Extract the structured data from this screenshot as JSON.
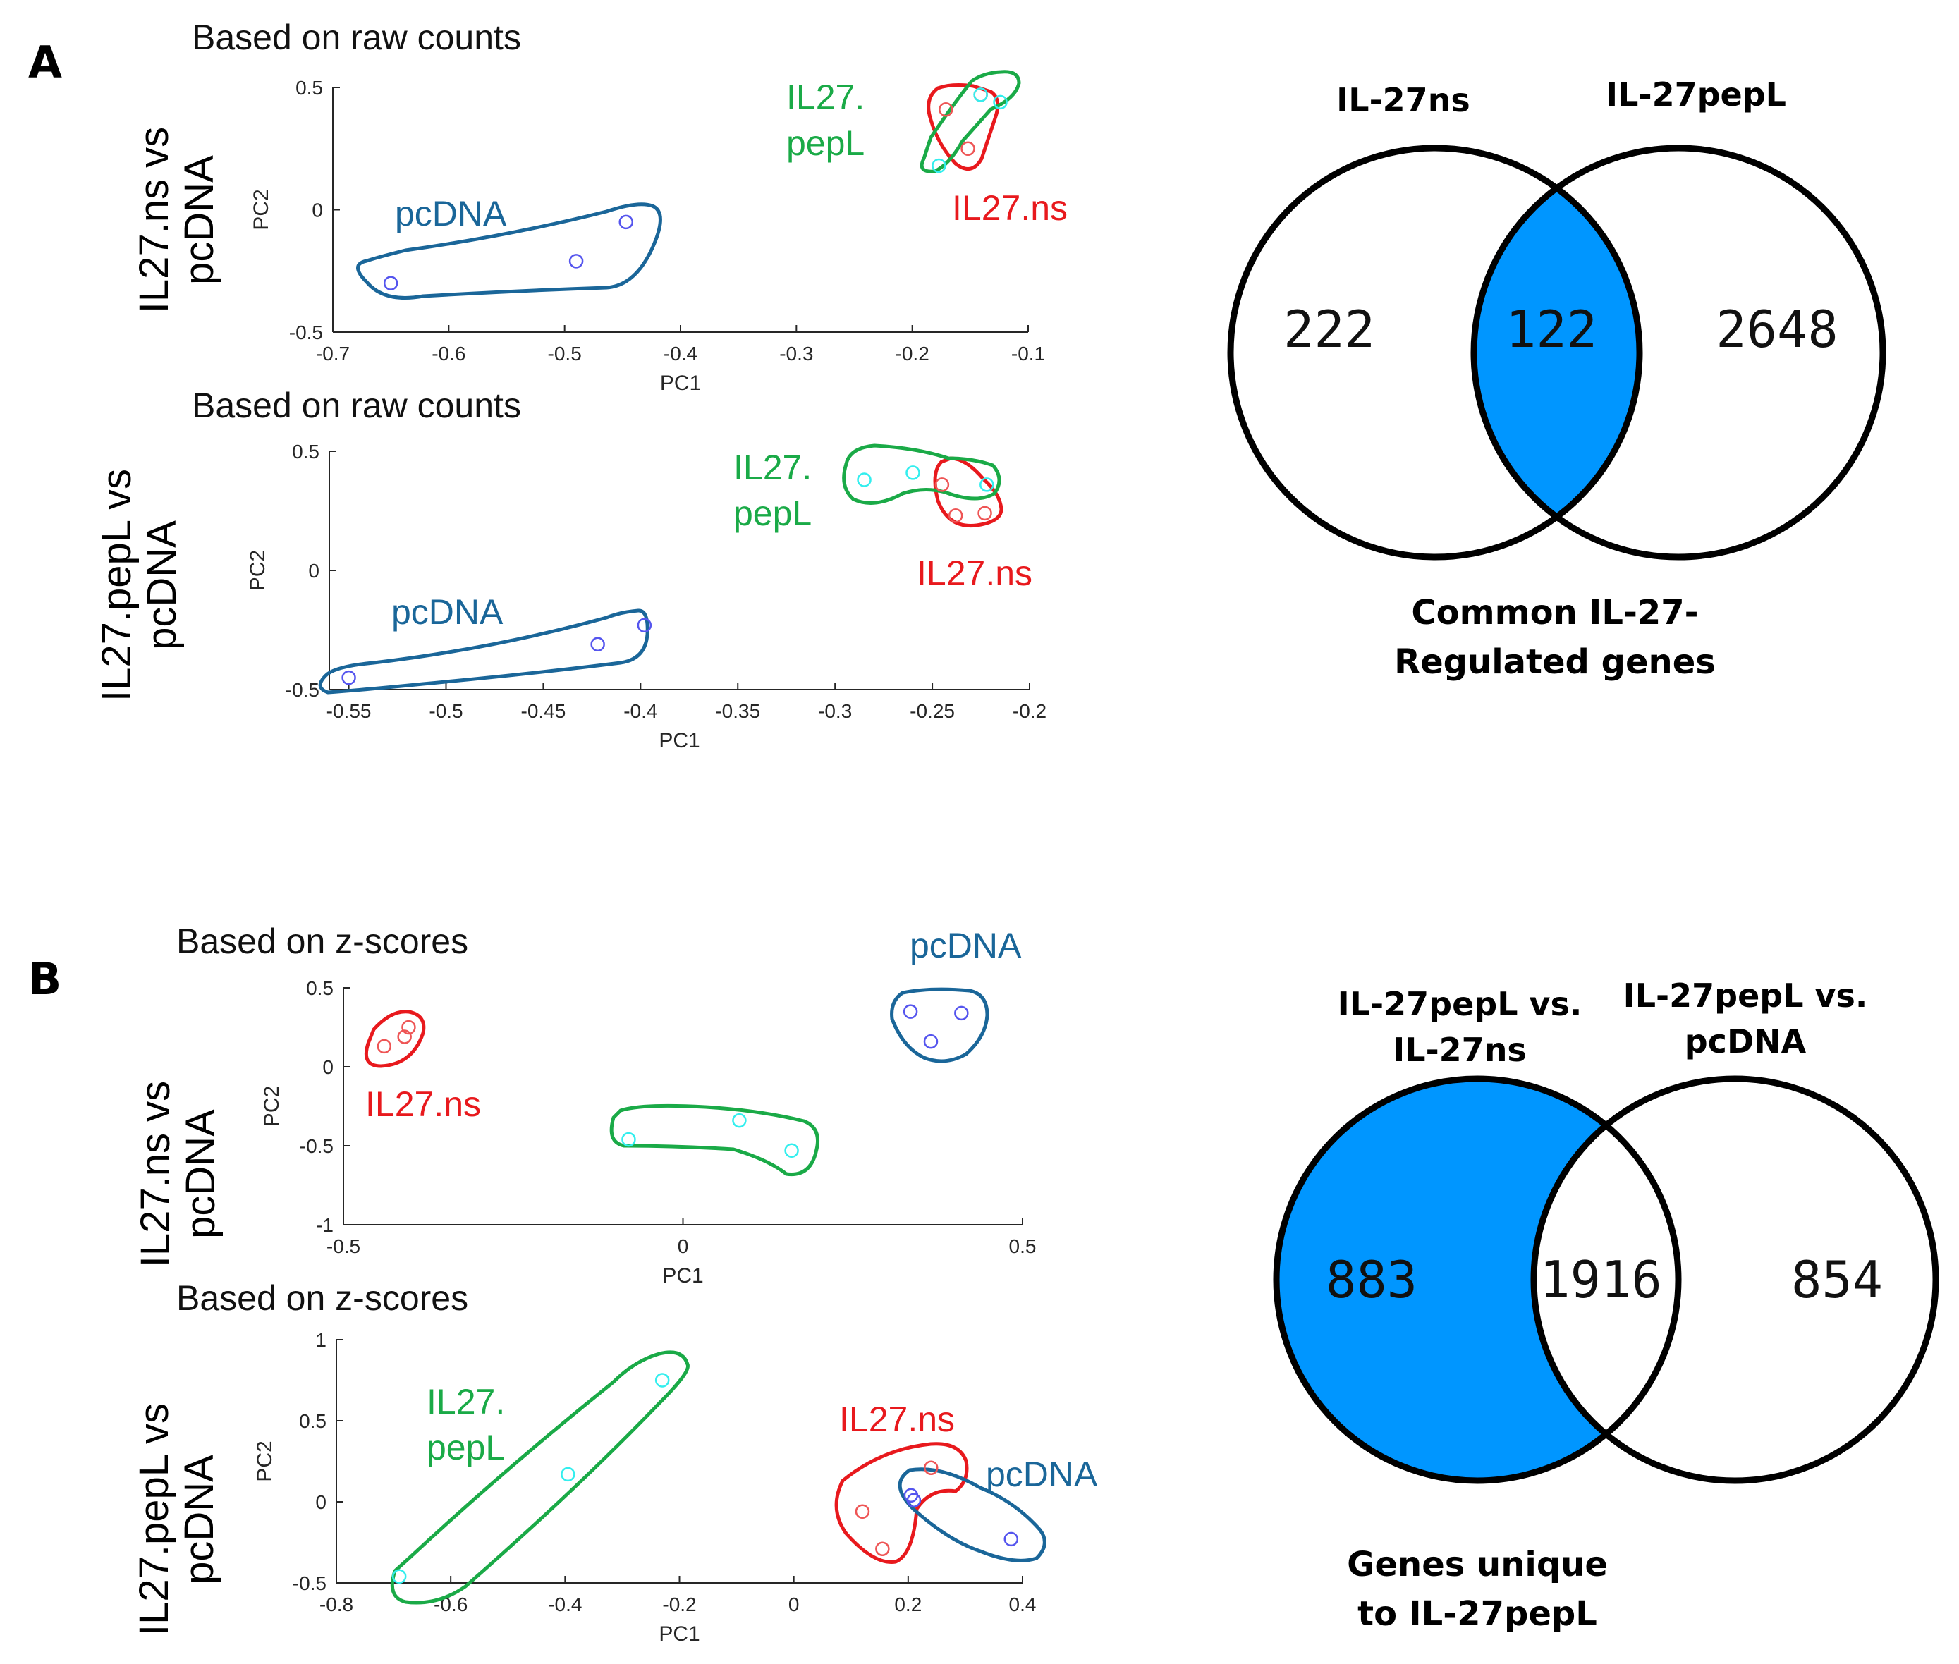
{
  "figure": {
    "panel_a_label": "A",
    "panel_b_label": "B"
  },
  "colors": {
    "pcdna": "#1a6699",
    "ns": "#e8191d",
    "pepl": "#1aaa47",
    "pcdna_point": "#5555ee",
    "ns_point": "#ee5555",
    "pepl_point": "#33eeee",
    "venn_fill": "#0096ff"
  },
  "chart_data": [
    {
      "type": "scatter",
      "id": "a1",
      "title": "Based on raw counts",
      "row_label": [
        "IL27.ns vs",
        "pcDNA"
      ],
      "xlabel": "PC1",
      "ylabel": "PC2",
      "xlim": [
        -0.7,
        -0.1
      ],
      "ylim": [
        -0.5,
        0.5
      ],
      "xticks": [
        -0.7,
        -0.6,
        -0.5,
        -0.4,
        -0.3,
        -0.2,
        -0.1
      ],
      "yticks": [
        -0.5,
        0,
        0.5
      ],
      "xtick_labels": [
        "-0.7",
        "-0.6",
        "-0.5",
        "-0.4",
        "-0.3",
        "-0.2",
        "-0.1"
      ],
      "ytick_labels": [
        "-0.5",
        "0",
        "0.5"
      ],
      "series": [
        {
          "name": "pcDNA",
          "group": "pcdna",
          "label_lines": [
            "pcDNA"
          ],
          "x": [
            -0.65,
            -0.49,
            -0.447
          ],
          "y": [
            -0.3,
            -0.21,
            -0.05
          ]
        },
        {
          "name": "IL27.ns",
          "group": "ns",
          "label_lines": [
            "IL27.ns"
          ],
          "x": [
            -0.171,
            -0.152,
            -0.141
          ],
          "y": [
            0.41,
            0.25,
            0.47
          ]
        },
        {
          "name": "IL27.pepL",
          "group": "pepl",
          "label_lines": [
            "IL27.",
            "pepL"
          ],
          "x": [
            -0.177,
            -0.141,
            -0.124
          ],
          "y": [
            0.18,
            0.47,
            0.44
          ]
        }
      ]
    },
    {
      "type": "scatter",
      "id": "a2",
      "title": "Based on raw counts",
      "row_label": [
        "IL27.pepL vs",
        "pcDNA"
      ],
      "xlabel": "PC1",
      "ylabel": "PC2",
      "xlim": [
        -0.56,
        -0.2
      ],
      "ylim": [
        -0.5,
        0.5
      ],
      "xticks": [
        -0.55,
        -0.5,
        -0.45,
        -0.4,
        -0.35,
        -0.3,
        -0.25,
        -0.2
      ],
      "yticks": [
        -0.5,
        0,
        0.5
      ],
      "xtick_labels": [
        "-0.55",
        "-0.5",
        "-0.45",
        "-0.4",
        "-0.35",
        "-0.3",
        "-0.25",
        "-0.2"
      ],
      "ytick_labels": [
        "-0.5",
        "0",
        "0.5"
      ],
      "series": [
        {
          "name": "pcDNA",
          "group": "pcdna",
          "label_lines": [
            "pcDNA"
          ],
          "x": [
            -0.55,
            -0.422,
            -0.398
          ],
          "y": [
            -0.45,
            -0.31,
            -0.23
          ]
        },
        {
          "name": "IL27.ns",
          "group": "ns",
          "label_lines": [
            "IL27.ns"
          ],
          "x": [
            -0.245,
            -0.238,
            -0.223
          ],
          "y": [
            0.36,
            0.23,
            0.24
          ]
        },
        {
          "name": "IL27.pepL",
          "group": "pepl",
          "label_lines": [
            "IL27.",
            "pepL"
          ],
          "x": [
            -0.285,
            -0.26,
            -0.222
          ],
          "y": [
            0.38,
            0.41,
            0.36
          ]
        }
      ]
    },
    {
      "type": "scatter",
      "id": "b1",
      "title": "Based on z-scores",
      "row_label": [
        "IL27.ns vs",
        "pcDNA"
      ],
      "xlabel": "PC1",
      "ylabel": "PC2",
      "xlim": [
        -0.5,
        0.5
      ],
      "ylim": [
        -1,
        0.5
      ],
      "xticks": [
        -0.5,
        0,
        0.5
      ],
      "yticks": [
        -1,
        -0.5,
        0,
        0.5
      ],
      "xtick_labels": [
        "-0.5",
        "0",
        "0.5"
      ],
      "ytick_labels": [
        "-1",
        "-0.5",
        "0",
        "0.5"
      ],
      "series": [
        {
          "name": "pcDNA",
          "group": "pcdna",
          "label_lines": [
            "pcDNA"
          ],
          "x": [
            0.335,
            0.365,
            0.41
          ],
          "y": [
            0.35,
            0.16,
            0.34
          ]
        },
        {
          "name": "IL27.ns",
          "group": "ns",
          "label_lines": [
            "IL27.ns"
          ],
          "x": [
            -0.44,
            -0.41,
            -0.404
          ],
          "y": [
            0.13,
            0.19,
            0.25
          ]
        },
        {
          "name": "IL27.pepL",
          "group": "pepl",
          "label_lines": [
            "IL27.",
            "pepL"
          ],
          "x": [
            -0.08,
            0.083,
            0.16
          ],
          "y": [
            -0.46,
            -0.34,
            -0.53
          ]
        }
      ]
    },
    {
      "type": "scatter",
      "id": "b2",
      "title": "Based on z-scores",
      "row_label": [
        "IL27.pepL vs",
        "pcDNA"
      ],
      "xlabel": "PC1",
      "ylabel": "PC2",
      "xlim": [
        -0.8,
        0.4
      ],
      "ylim": [
        -0.5,
        1
      ],
      "xticks": [
        -0.8,
        -0.6,
        -0.4,
        -0.2,
        0,
        0.2,
        0.4
      ],
      "yticks": [
        -0.5,
        0,
        0.5,
        1
      ],
      "xtick_labels": [
        "-0.8",
        "-0.6",
        "-0.4",
        "-0.2",
        "0",
        "0.2",
        "0.4"
      ],
      "ytick_labels": [
        "-0.5",
        "0",
        "0.5",
        "1"
      ],
      "series": [
        {
          "name": "pcDNA",
          "group": "pcdna",
          "label_lines": [
            "pcDNA"
          ],
          "x": [
            0.205,
            0.21,
            0.38
          ],
          "y": [
            0.04,
            0.01,
            -0.23
          ]
        },
        {
          "name": "IL27.ns",
          "group": "ns",
          "label_lines": [
            "IL27.ns"
          ],
          "x": [
            0.12,
            0.155,
            0.24
          ],
          "y": [
            -0.06,
            -0.29,
            0.21
          ]
        },
        {
          "name": "IL27.pepL",
          "group": "pepl",
          "label_lines": [
            "IL27.",
            "pepL"
          ],
          "x": [
            -0.69,
            -0.395,
            -0.23
          ],
          "y": [
            -0.46,
            0.17,
            0.75
          ]
        }
      ]
    }
  ],
  "venn": [
    {
      "id": "venn_a",
      "left_label": "IL-27ns",
      "right_label": "IL-27pepL",
      "left_only": "222",
      "overlap": "122",
      "right_only": "2648",
      "highlight": "overlap",
      "caption": [
        "Common IL-27-",
        "Regulated genes"
      ]
    },
    {
      "id": "venn_b",
      "left_label": [
        "IL-27pepL vs.",
        "IL-27ns"
      ],
      "right_label": [
        "IL-27pepL vs.",
        "pcDNA"
      ],
      "left_only": "883",
      "overlap": "1916",
      "right_only": "854",
      "highlight": "left_only",
      "caption": [
        "Genes unique",
        "to IL-27pepL"
      ]
    }
  ]
}
